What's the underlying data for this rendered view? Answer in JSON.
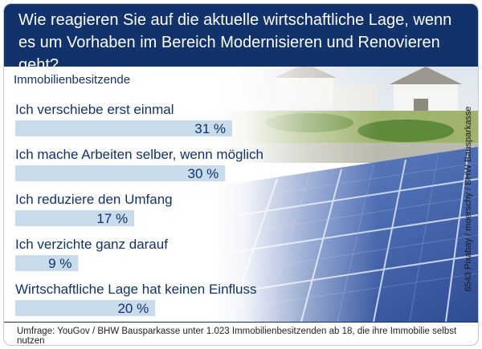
{
  "title": "Wie reagieren Sie auf die aktuelle wirtschaftliche Lage, wenn es um Vorhaben im Bereich Modernisieren und Renovieren geht?",
  "group_label": "Immobilienbesitzende",
  "photo_credit": "6543 Pixabay / moerschy / BHW Bausparkasse",
  "footnote": "Umfrage: YouGov / BHW Bausparkasse unter 1.023 Immobilienbesitzenden ab 18, die ihre Immobilie selbst nutzen",
  "colors": {
    "header": "#11326b",
    "bar": "#c9dcec",
    "text": "#11326b"
  },
  "chart_data": {
    "type": "bar",
    "orientation": "horizontal",
    "categories": [
      "Ich verschiebe erst einmal",
      "Ich mache Arbeiten selber, wenn möglich",
      "Ich reduziere den Umfang",
      "Ich verzichte ganz darauf",
      "Wirtschaftliche Lage hat keinen Einfluss"
    ],
    "values": [
      31,
      30,
      17,
      9,
      20
    ],
    "value_labels": [
      "31 %",
      "30 %",
      "17 %",
      "9 %",
      "20 %"
    ],
    "unit": "%",
    "title": "Wie reagieren Sie auf die aktuelle wirtschaftliche Lage, wenn es um Vorhaben im Bereich Modernisieren und Renovieren geht?",
    "subtitle": "Immobilienbesitzende",
    "xlim": [
      0,
      31
    ],
    "grid": false,
    "legend": "none"
  }
}
